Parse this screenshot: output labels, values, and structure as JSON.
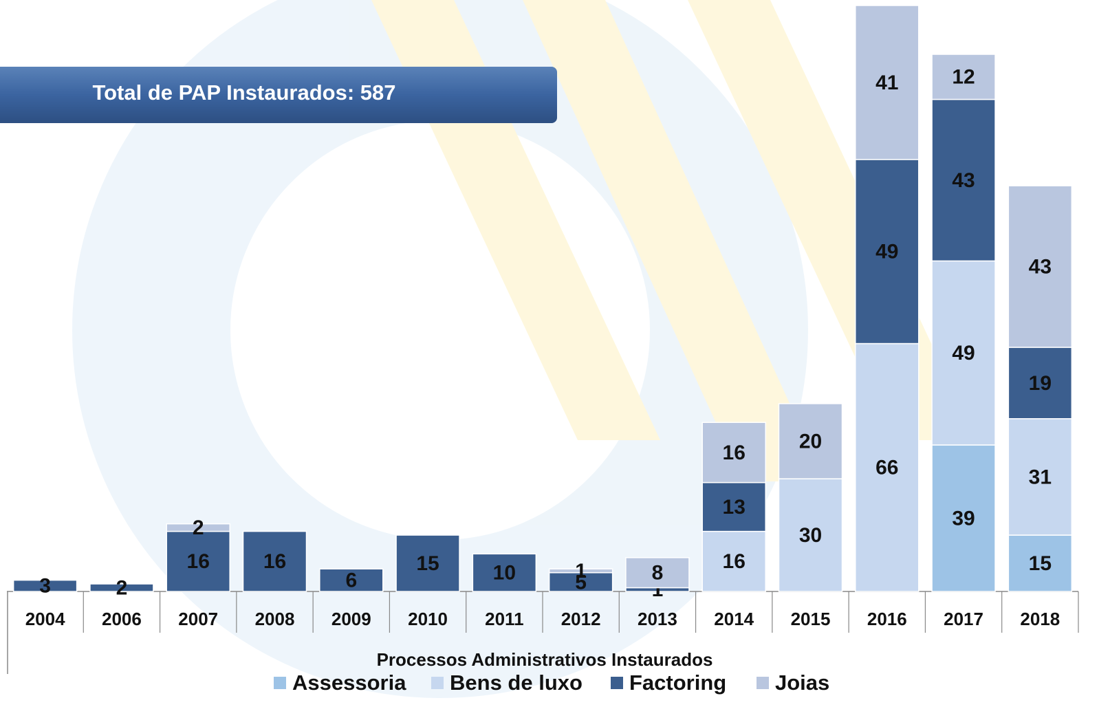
{
  "chart_data": {
    "type": "stacked-bar",
    "title": "Total de PAP Instaurados: 587",
    "x_label": "Processos Administrativos Instaurados",
    "categories": [
      "2004",
      "2006",
      "2007",
      "2008",
      "2009",
      "2010",
      "2011",
      "2012",
      "2013",
      "2014",
      "2015",
      "2016",
      "2017",
      "2018"
    ],
    "series": [
      {
        "name": "Assessoria",
        "color": "#9dc3e6",
        "values": [
          null,
          null,
          null,
          null,
          null,
          null,
          null,
          null,
          null,
          null,
          null,
          null,
          39,
          15
        ]
      },
      {
        "name": "Bens de luxo",
        "color": "#c6d7ef",
        "values": [
          null,
          null,
          null,
          null,
          null,
          null,
          null,
          null,
          null,
          16,
          30,
          66,
          49,
          31
        ]
      },
      {
        "name": "Factoring",
        "color": "#3b5e8e",
        "values": [
          3,
          2,
          16,
          16,
          6,
          15,
          10,
          5,
          1,
          13,
          null,
          49,
          43,
          19
        ]
      },
      {
        "name": "Joias",
        "color": "#b9c6df",
        "values": [
          null,
          null,
          2,
          null,
          null,
          null,
          null,
          1,
          8,
          16,
          20,
          41,
          12,
          43
        ]
      }
    ],
    "legend": "bottom"
  }
}
